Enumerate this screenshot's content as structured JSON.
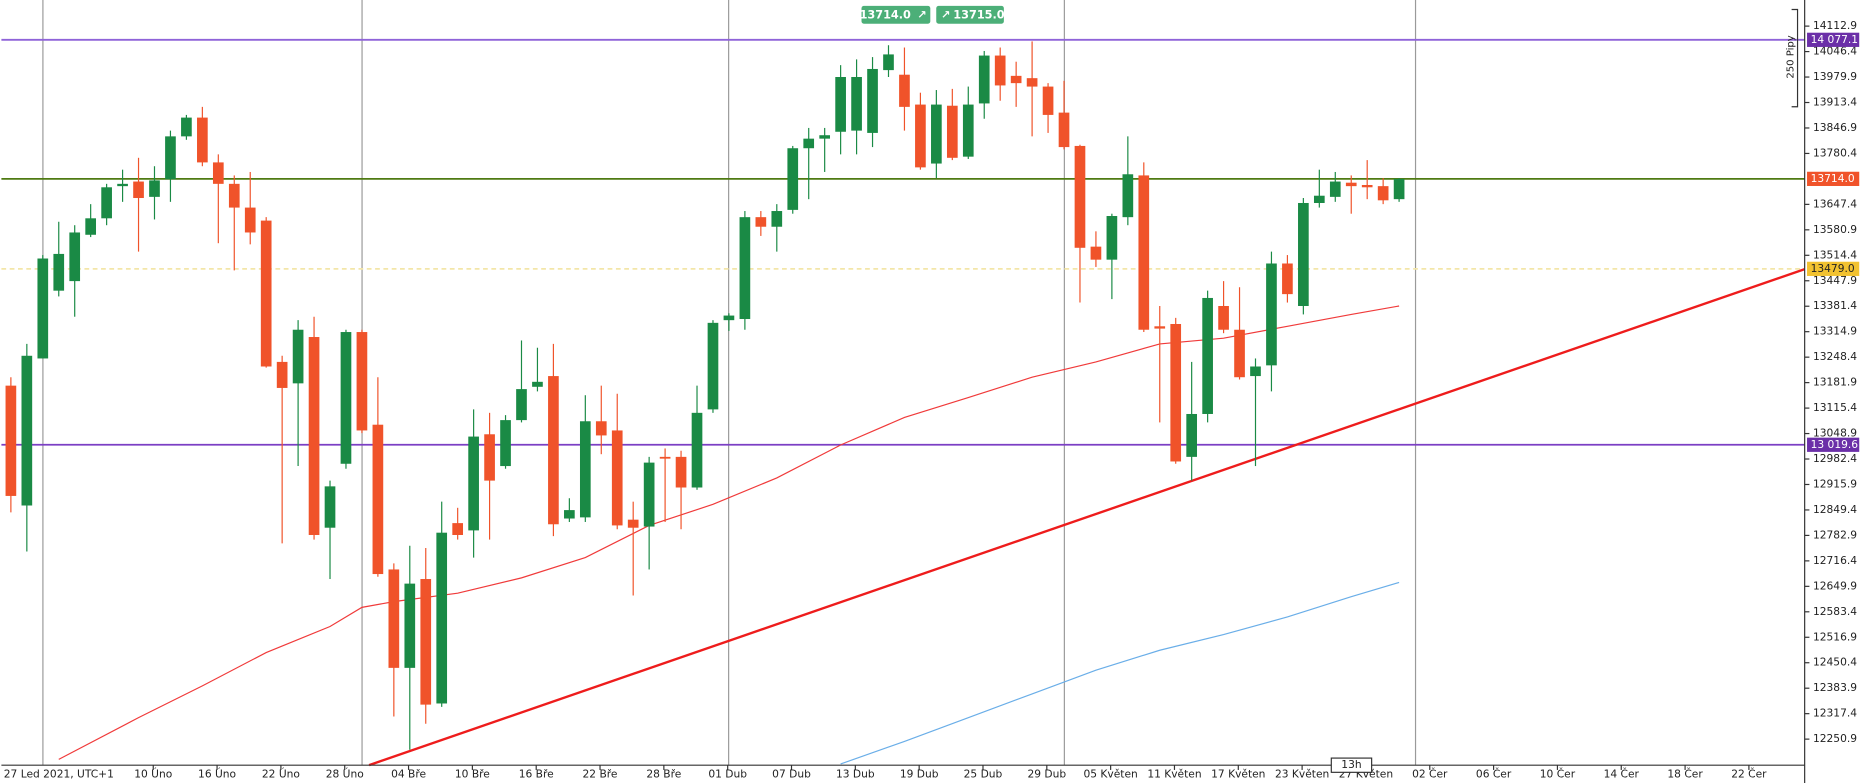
{
  "chart_data": {
    "type": "candlestick",
    "x_labels": [
      "27 Led 2021, UTC+1",
      "10 Úno",
      "16 Úno",
      "22 Úno",
      "28 Úno",
      "04 Bře",
      "10 Bře",
      "16 Bře",
      "22 Bře",
      "28 Bře",
      "01 Dub",
      "07 Dub",
      "13 Dub",
      "19 Dub",
      "25 Dub",
      "29 Dub",
      "05 Květen",
      "11 Květen",
      "17 Květen",
      "23 Květen",
      "27 Květen",
      "02 Čer",
      "06 Čer",
      "10 Čer",
      "14 Čer",
      "18 Čer",
      "22 Čer"
    ],
    "open": [
      13174,
      12861,
      13245,
      13422,
      13447,
      13568,
      13611,
      13695,
      13707,
      13667,
      13713,
      13825,
      13874,
      13757,
      13701,
      13639,
      13605,
      13236,
      13180,
      13301,
      12803,
      12970,
      13314,
      13072,
      12694,
      12437,
      12669,
      12344,
      12815,
      12796,
      13047,
      12964,
      13084,
      13171,
      13199,
      12827,
      12830,
      13081,
      13057,
      12824,
      12806,
      12988,
      12988,
      12908,
      13112,
      13345,
      13348,
      13614,
      13589,
      13633,
      13794,
      13819,
      13837,
      13840,
      13834,
      13998,
      13986,
      13908,
      13754,
      13905,
      13772,
      13911,
      14036,
      13983,
      13977,
      13955,
      13887,
      13800,
      13537,
      13503,
      13614,
      13723,
      13329,
      13335,
      12988,
      13100,
      13382,
      13320,
      13199,
      13227,
      13493,
      13382,
      13651,
      13667,
      13704,
      13698,
      13695,
      13661
    ],
    "high": [
      13196,
      13283,
      13515,
      13602,
      13593,
      13648,
      13701,
      13738,
      13769,
      13747,
      13840,
      13881,
      13902,
      13778,
      13723,
      13732,
      13614,
      13252,
      13345,
      13354,
      12926,
      13320,
      13320,
      13196,
      12710,
      12756,
      12750,
      12871,
      12855,
      13112,
      13103,
      13097,
      13292,
      13273,
      13283,
      12880,
      13149,
      13174,
      13153,
      12871,
      12988,
      13010,
      13004,
      13174,
      13345,
      13363,
      13630,
      13630,
      13648,
      13800,
      13847,
      13847,
      14011,
      14026,
      14032,
      14063,
      14057,
      13939,
      13946,
      13949,
      13955,
      14048,
      14057,
      14020,
      14073,
      13964,
      13970,
      13803,
      13577,
      13623,
      13825,
      13757,
      13382,
      13351,
      13236,
      13422,
      13447,
      13431,
      13245,
      13524,
      13515,
      13664,
      13738,
      13732,
      13723,
      13763,
      13716,
      13716
    ],
    "low": [
      12843,
      12741,
      13245,
      13407,
      13354,
      13562,
      13593,
      13654,
      13524,
      13608,
      13654,
      13816,
      13747,
      13546,
      13475,
      13543,
      13221,
      12762,
      12964,
      12772,
      12669,
      12957,
      13050,
      12675,
      12310,
      12223,
      12291,
      12335,
      12772,
      12725,
      12772,
      12957,
      13078,
      13159,
      12781,
      12818,
      12818,
      12995,
      12799,
      12626,
      12694,
      12818,
      12799,
      12902,
      13103,
      13317,
      13320,
      13565,
      13524,
      13623,
      13661,
      13732,
      13778,
      13778,
      13797,
      13980,
      13840,
      13738,
      13716,
      13763,
      13766,
      13871,
      13918,
      13902,
      13825,
      13834,
      13791,
      13391,
      13484,
      13400,
      13593,
      13314,
      13078,
      12970,
      12926,
      13078,
      13311,
      13190,
      12964,
      13159,
      13391,
      13360,
      13639,
      13654,
      13623,
      13661,
      13648,
      13654
    ],
    "close": [
      12886,
      13252,
      13506,
      13518,
      13574,
      13611,
      13692,
      13701,
      13664,
      13710,
      13825,
      13874,
      13757,
      13701,
      13639,
      13574,
      13224,
      13168,
      13320,
      12784,
      12911,
      13314,
      13057,
      12682,
      12437,
      12657,
      12341,
      12790,
      12784,
      13041,
      12926,
      13084,
      13165,
      13184,
      12812,
      12849,
      13081,
      13044,
      12809,
      12803,
      12973,
      12985,
      12908,
      13103,
      13338,
      13357,
      13614,
      13589,
      13630,
      13794,
      13819,
      13828,
      13980,
      13980,
      14001,
      14039,
      13902,
      13744,
      13908,
      13769,
      13908,
      14036,
      13958,
      13964,
      13955,
      13881,
      13797,
      13534,
      13503,
      13617,
      13726,
      13320,
      13323,
      12976,
      13100,
      13403,
      13320,
      13196,
      13224,
      13493,
      13413,
      13651,
      13670,
      13707,
      13695,
      13692,
      13658,
      13714
    ],
    "up_color": "#1a8a45",
    "down_color": "#f0532a",
    "ylim": [
      12182.8,
      14181.1
    ],
    "yticks": [
      14112.9,
      14046.4,
      13979.9,
      13913.4,
      13846.9,
      13780.4,
      13647.4,
      13580.9,
      13514.4,
      13447.9,
      13381.4,
      13314.9,
      13248.4,
      13181.9,
      13115.4,
      13048.9,
      12982.4,
      12915.9,
      12849.4,
      12782.9,
      12716.4,
      12649.9,
      12583.4,
      12516.9,
      12450.4,
      12383.9,
      12317.4,
      12250.9
    ],
    "levels": [
      {
        "value": 14077.1,
        "label": "14 077.1",
        "line_color": "#8f63d9",
        "label_color": "#6b2fa8"
      },
      {
        "value": 13714.0,
        "label": "13714.0",
        "line_color": "#4f7a12",
        "label_color": "#f0532a"
      },
      {
        "value": 13479.0,
        "label": "13479.0",
        "line_color": "#f3e6a8",
        "label_color": "#f2c230",
        "dashed": true
      },
      {
        "value": 13019.6,
        "label": "13 019.6",
        "line_color": "#7b3fc4",
        "label_color": "#6b2fa8"
      }
    ],
    "moving_averages": [
      {
        "color": "#f03a3a",
        "x": [
          3,
          8,
          12,
          16,
          20,
          22,
          24,
          28,
          32,
          36,
          40,
          44,
          48,
          52,
          56,
          60,
          64,
          68,
          72,
          76,
          80,
          84,
          87
        ],
        "values": [
          12198,
          12307,
          12390,
          12477,
          12545,
          12595,
          12610,
          12632,
          12672,
          12725,
          12809,
          12864,
          12933,
          13019,
          13091,
          13143,
          13196,
          13236,
          13283,
          13298,
          13329,
          13360,
          13382
        ]
      },
      {
        "color": "#6aaee8",
        "x": [
          52,
          56,
          60,
          64,
          68,
          72,
          76,
          80,
          84,
          87
        ],
        "values": [
          12186,
          12245,
          12307,
          12369,
          12431,
          12483,
          12524,
          12570,
          12623,
          12660
        ]
      }
    ],
    "trend_line": {
      "color": "#ee1c1c",
      "x": [
        22.45,
        112.4
      ],
      "values": [
        12183,
        13478
      ]
    },
    "quotes": {
      "bid": "13714.0",
      "ask": "13715.0"
    },
    "pips_label": "250 Pipy",
    "timeframe": "13h"
  }
}
